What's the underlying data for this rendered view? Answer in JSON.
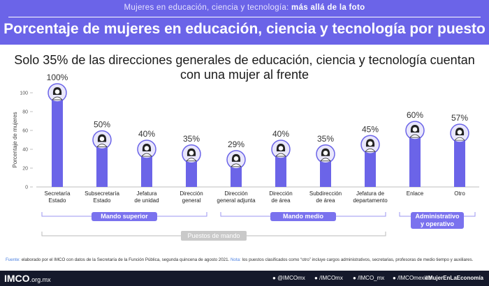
{
  "header": {
    "subtitle_plain": "Mujeres en educación, ciencia y tecnología: ",
    "subtitle_bold": "más allá de la foto",
    "title": "Porcentaje de mujeres en educación, ciencia y tecnología por puesto"
  },
  "headline": "Solo 35% de las direcciones generales de educación, ciencia y tecnología cuentan con una mujer al frente",
  "colors": {
    "bar": "#6b64e8",
    "topbar": "#6b64e8",
    "group_pill": "#7a72ee",
    "puestos_pill": "#c9c9c9",
    "footer": "#15192b"
  },
  "chart_data": {
    "type": "bar",
    "ylabel": "Porcentaje de mujeres",
    "ylim": [
      0,
      100
    ],
    "yticks": [
      0,
      20,
      40,
      60,
      80,
      100
    ],
    "grid": false,
    "categories": [
      [
        "Secretaría",
        "Estado"
      ],
      [
        "Subsecretaría",
        "Estado"
      ],
      [
        "Jefatura",
        "de unidad"
      ],
      [
        "Dirección",
        "general"
      ],
      [
        "Dirección",
        "general adjunta"
      ],
      [
        "Dirección",
        "de área"
      ],
      [
        "Subdirección",
        "de área"
      ],
      [
        "Jefatura de",
        "departamento"
      ],
      [
        "Enlace"
      ],
      [
        "Otro"
      ]
    ],
    "values": [
      100,
      50,
      40,
      35,
      29,
      40,
      35,
      45,
      60,
      57
    ],
    "value_labels": [
      "100%",
      "50%",
      "40%",
      "35%",
      "29%",
      "40%",
      "35%",
      "45%",
      "60%",
      "57%"
    ],
    "marker_icon": "woman-avatar-icon",
    "groups": [
      {
        "label": "Mando superior",
        "from": 0,
        "to": 3
      },
      {
        "label": "Mando medio",
        "from": 4,
        "to": 7
      },
      {
        "label": "Administrativo y operativo",
        "lines": [
          "Administrativo",
          "y operativo"
        ],
        "from": 8,
        "to": 9
      }
    ],
    "supergroup": {
      "label": "Puestos de mando",
      "from": 0,
      "to": 7
    }
  },
  "source": {
    "label1": "Fuente:",
    "text1": " elaborado por el IMCO con datos de la Secretaría de la Función Pública, segunda quincena de agosto 2021. ",
    "label2": "Nota:",
    "text2": " los puestos clasificados como “otro” incluye cargos administrativos, secretarias, profesoras de medio tiempo y auxiliares."
  },
  "footer": {
    "logo": "IMCO",
    "logo_domain": ".org.mx",
    "social": [
      {
        "icon": "twitter-icon",
        "handle": "@IMCOmx"
      },
      {
        "icon": "facebook-icon",
        "handle": "/IMCOmx"
      },
      {
        "icon": "instagram-icon",
        "handle": "/IMCO_mx"
      },
      {
        "icon": "youtube-icon",
        "handle": "/IMCOmexico"
      }
    ],
    "hashtag": "#MujerEnLaEconomía"
  }
}
